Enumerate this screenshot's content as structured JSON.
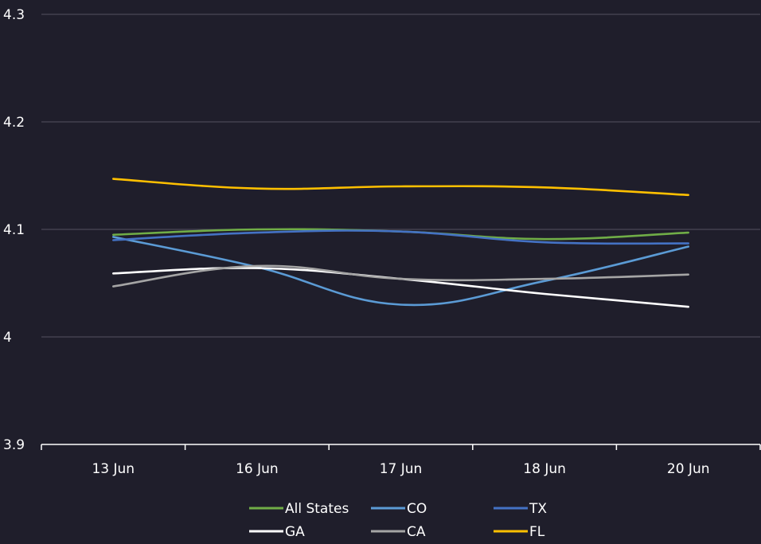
{
  "chart_data": {
    "type": "line",
    "title": "",
    "xlabel": "",
    "ylabel": "",
    "categories": [
      "13 Jun",
      "16 Jun",
      "17 Jun",
      "18 Jun",
      "20 Jun"
    ],
    "ylim": [
      3.9,
      4.3
    ],
    "yticks": [
      "3.9",
      "4",
      "4.1",
      "4.2",
      "4.3"
    ],
    "ytick_values": [
      3.9,
      4.0,
      4.1,
      4.2,
      4.3
    ],
    "grid": true,
    "legend_position": "bottom",
    "series": [
      {
        "name": "All States",
        "color": "#70ad47",
        "values": [
          4.095,
          4.1,
          4.098,
          4.091,
          4.097
        ]
      },
      {
        "name": "CO",
        "color": "#5b9bd5",
        "values": [
          4.093,
          4.065,
          4.03,
          4.052,
          4.084
        ]
      },
      {
        "name": "TX",
        "color": "#4472c4",
        "values": [
          4.09,
          4.097,
          4.098,
          4.088,
          4.087
        ]
      },
      {
        "name": "GA",
        "color": "#ffffff",
        "values": [
          4.059,
          4.064,
          4.054,
          4.04,
          4.028
        ]
      },
      {
        "name": "CA",
        "color": "#a5a5a5",
        "values": [
          4.047,
          4.066,
          4.054,
          4.054,
          4.058
        ]
      },
      {
        "name": "FL",
        "color": "#ffc000",
        "values": [
          4.147,
          4.138,
          4.14,
          4.139,
          4.132
        ]
      }
    ]
  }
}
